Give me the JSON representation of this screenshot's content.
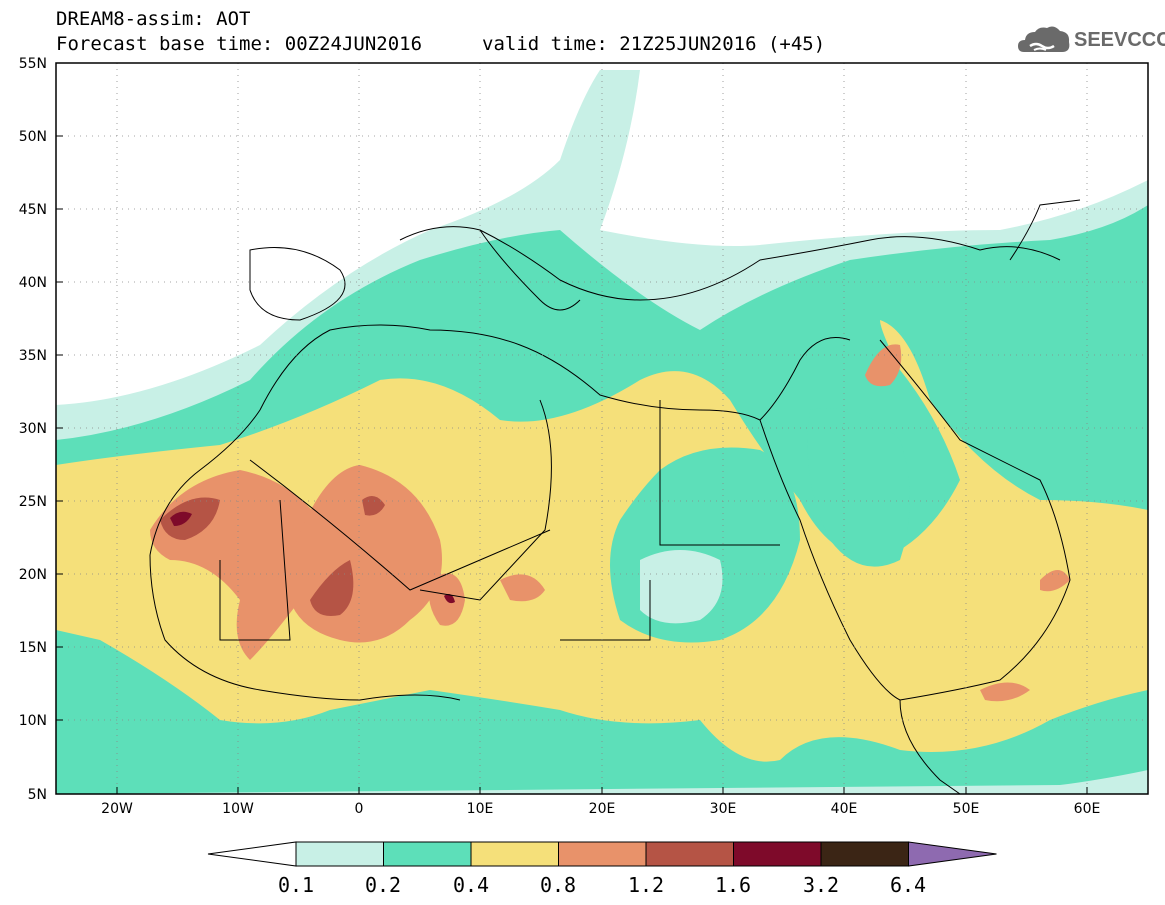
{
  "header": {
    "title": "DREAM8-assim: AOT",
    "base_time": "Forecast base time: 00Z24JUN2016",
    "valid_time": "valid time: 21Z25JUN2016 (+45)"
  },
  "logo": {
    "text": "SEEVCCC",
    "icon": "cloud-icon",
    "color": "#6a6a6a"
  },
  "map": {
    "lon_labels": [
      "20W",
      "10W",
      "0",
      "10E",
      "20E",
      "30E",
      "40E",
      "50E",
      "60E"
    ],
    "lat_labels": [
      "55N",
      "50N",
      "45N",
      "40N",
      "35N",
      "30N",
      "25N",
      "20N",
      "15N",
      "10N",
      "5N"
    ],
    "lon_range": [
      -25,
      65
    ],
    "lat_range": [
      5,
      55
    ]
  },
  "colorbar": {
    "labels": [
      "0.1",
      "0.2",
      "0.4",
      "0.8",
      "1.2",
      "1.6",
      "3.2",
      "6.4"
    ],
    "colors": [
      "#ffffff",
      "#c8f0e6",
      "#5ddfb9",
      "#f5e07a",
      "#e8926a",
      "#b55445",
      "#7e0a2a",
      "#3b2515",
      "#8e6ab0"
    ]
  }
}
